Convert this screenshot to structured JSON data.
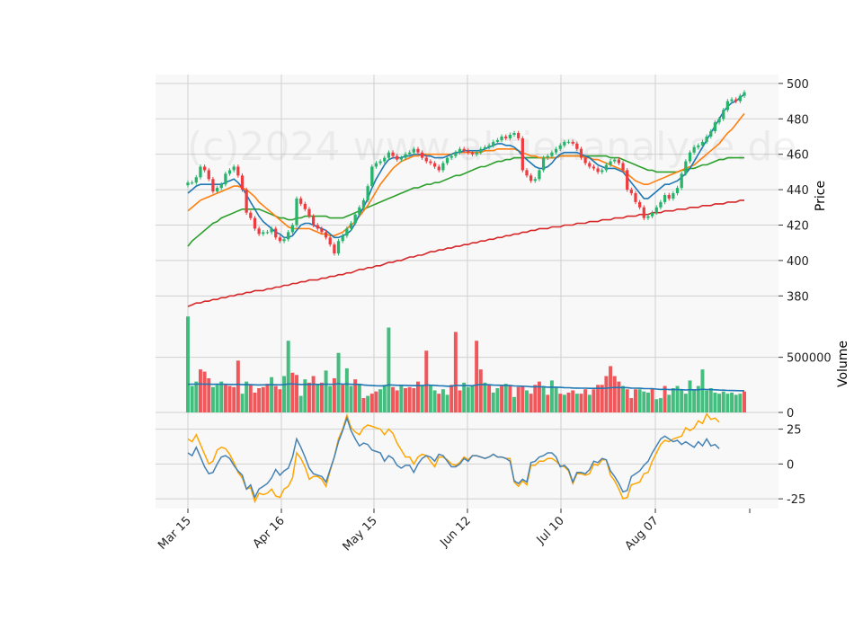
{
  "chart_data": {
    "type": "candlestick",
    "watermark": "(c)2024 www.aktienanalyse.de",
    "colors": {
      "up": "#26b36a",
      "down": "#ef3b3f",
      "ma_blue": "#1f77b4",
      "ma_orange": "#ff7f0e",
      "ma_green": "#2ca02c",
      "ma_red": "#d62728",
      "volume_ma": "#1f77b4",
      "osc_blue": "#4682b4",
      "osc_orange": "#ffa500",
      "grid": "#d0d0d0",
      "panel_bg": "#f8f8f8"
    },
    "x_ticks": [
      "Mar 15",
      "Apr 16",
      "May 15",
      "Jun 12",
      "Jul 10",
      "Aug 07"
    ],
    "price_panel": {
      "ylabel": "Price",
      "ylim": [
        369,
        505
      ],
      "yticks": [
        380,
        400,
        420,
        440,
        460,
        480,
        500
      ],
      "close": [
        444,
        444,
        447,
        453,
        451,
        446,
        439,
        441,
        443,
        449,
        451,
        453,
        448,
        440,
        427,
        424,
        418,
        415,
        416,
        416,
        418,
        413,
        411,
        412,
        416,
        420,
        435,
        432,
        429,
        425,
        420,
        418,
        416,
        413,
        409,
        404,
        411,
        414,
        418,
        421,
        426,
        430,
        434,
        442,
        453,
        455,
        456,
        458,
        461,
        459,
        457,
        458,
        460,
        461,
        463,
        461,
        458,
        456,
        455,
        453,
        451,
        455,
        458,
        459,
        461,
        463,
        462,
        461,
        460,
        461,
        463,
        464,
        465,
        467,
        468,
        470,
        469,
        471,
        472,
        469,
        451,
        448,
        445,
        446,
        451,
        458,
        459,
        461,
        463,
        465,
        467,
        467,
        466,
        463,
        458,
        455,
        453,
        452,
        450,
        451,
        454,
        456,
        457,
        455,
        451,
        440,
        438,
        433,
        430,
        424,
        425,
        427,
        430,
        433,
        437,
        435,
        438,
        441,
        449,
        456,
        461,
        464,
        465,
        467,
        470,
        473,
        478,
        480,
        485,
        490,
        491,
        490,
        493,
        495
      ],
      "ma_blue": [
        438,
        440,
        442,
        443,
        443,
        443,
        443,
        443,
        443,
        444,
        445,
        446,
        444,
        441,
        437,
        433,
        429,
        425,
        422,
        420,
        418,
        416,
        415,
        413,
        413,
        414,
        417,
        420,
        421,
        421,
        420,
        419,
        418,
        417,
        415,
        413,
        413,
        414,
        415,
        417,
        421,
        426,
        430,
        435,
        441,
        446,
        450,
        454,
        457,
        458,
        458,
        458,
        459,
        459,
        460,
        460,
        460,
        459,
        459,
        458,
        458,
        458,
        459,
        460,
        461,
        461,
        462,
        462,
        462,
        462,
        462,
        463,
        464,
        465,
        466,
        466,
        465,
        465,
        464,
        462,
        459,
        457,
        455,
        453,
        452,
        452,
        453,
        455,
        458,
        460,
        461,
        461,
        461,
        461,
        460,
        459,
        458,
        456,
        454,
        453,
        452,
        452,
        452,
        451,
        450,
        447,
        444,
        441,
        438,
        435,
        435,
        437,
        439,
        441,
        443,
        443,
        444,
        445,
        447,
        449,
        452,
        456,
        460,
        464,
        468,
        472,
        476,
        480,
        484,
        487,
        489,
        490,
        492,
        494
      ],
      "ma_orange": [
        428,
        430,
        432,
        434,
        435,
        436,
        437,
        438,
        439,
        440,
        441,
        442,
        442,
        441,
        440,
        438,
        436,
        433,
        431,
        429,
        427,
        425,
        423,
        421,
        419,
        418,
        418,
        418,
        418,
        418,
        417,
        416,
        415,
        415,
        414,
        414,
        415,
        416,
        418,
        420,
        422,
        425,
        428,
        431,
        435,
        439,
        443,
        446,
        449,
        452,
        454,
        456,
        457,
        458,
        459,
        459,
        460,
        460,
        460,
        460,
        460,
        460,
        460,
        460,
        461,
        461,
        461,
        461,
        461,
        461,
        461,
        462,
        462,
        462,
        463,
        463,
        463,
        463,
        463,
        462,
        461,
        460,
        459,
        459,
        458,
        458,
        458,
        458,
        458,
        459,
        459,
        459,
        459,
        459,
        459,
        458,
        458,
        457,
        457,
        456,
        455,
        454,
        453,
        452,
        451,
        449,
        447,
        445,
        444,
        443,
        443,
        444,
        445,
        446,
        447,
        448,
        449,
        450,
        451,
        452,
        453,
        454,
        456,
        458,
        460,
        462,
        464,
        466,
        469,
        472,
        474,
        477,
        480,
        483
      ],
      "ma_green": [
        408,
        411,
        413,
        415,
        417,
        419,
        421,
        422,
        424,
        425,
        426,
        427,
        428,
        429,
        429,
        429,
        429,
        429,
        428,
        427,
        426,
        425,
        424,
        424,
        423,
        423,
        424,
        424,
        425,
        425,
        425,
        425,
        425,
        425,
        424,
        424,
        424,
        424,
        425,
        426,
        427,
        428,
        429,
        430,
        431,
        432,
        433,
        434,
        435,
        436,
        437,
        438,
        439,
        440,
        441,
        441,
        442,
        443,
        443,
        444,
        444,
        445,
        446,
        447,
        448,
        448,
        449,
        450,
        451,
        452,
        453,
        453,
        454,
        455,
        456,
        456,
        457,
        457,
        458,
        458,
        458,
        458,
        458,
        458,
        458,
        458,
        458,
        458,
        458,
        459,
        459,
        459,
        459,
        459,
        459,
        459,
        459,
        459,
        459,
        459,
        459,
        458,
        458,
        458,
        457,
        456,
        455,
        454,
        453,
        452,
        451,
        451,
        450,
        450,
        450,
        450,
        450,
        450,
        451,
        451,
        452,
        452,
        453,
        454,
        454,
        455,
        456,
        457,
        457,
        458,
        458,
        458,
        458,
        458
      ],
      "ma_red": [
        374,
        375,
        376,
        376,
        377,
        377,
        378,
        378,
        379,
        379,
        380,
        380,
        381,
        381,
        382,
        382,
        383,
        383,
        383,
        384,
        384,
        385,
        385,
        386,
        386,
        387,
        387,
        388,
        388,
        389,
        389,
        389,
        390,
        390,
        391,
        391,
        392,
        392,
        393,
        393,
        394,
        395,
        395,
        396,
        396,
        397,
        397,
        398,
        399,
        399,
        400,
        400,
        401,
        402,
        402,
        403,
        403,
        404,
        405,
        405,
        406,
        406,
        407,
        407,
        408,
        408,
        409,
        409,
        410,
        410,
        411,
        411,
        412,
        412,
        413,
        413,
        414,
        414,
        415,
        415,
        416,
        416,
        417,
        417,
        418,
        418,
        418,
        419,
        419,
        419,
        420,
        420,
        420,
        421,
        421,
        421,
        422,
        422,
        422,
        423,
        423,
        423,
        424,
        424,
        424,
        425,
        425,
        425,
        426,
        426,
        426,
        427,
        427,
        427,
        428,
        428,
        428,
        429,
        429,
        429,
        430,
        430,
        430,
        431,
        431,
        431,
        432,
        432,
        432,
        433,
        433,
        433,
        434,
        434
      ]
    },
    "volume_panel": {
      "ylabel": "Volume",
      "ylim": [
        0,
        880000
      ],
      "yticks": [
        0,
        500000
      ],
      "ytick_labels": [
        "0",
        "500000"
      ],
      "volume": [
        870000,
        240000,
        280000,
        390000,
        370000,
        310000,
        230000,
        250000,
        280000,
        250000,
        240000,
        230000,
        470000,
        170000,
        280000,
        250000,
        180000,
        220000,
        230000,
        260000,
        320000,
        240000,
        210000,
        330000,
        650000,
        360000,
        340000,
        150000,
        300000,
        270000,
        330000,
        250000,
        270000,
        380000,
        240000,
        310000,
        540000,
        250000,
        400000,
        240000,
        300000,
        260000,
        130000,
        150000,
        170000,
        190000,
        210000,
        250000,
        770000,
        230000,
        200000,
        250000,
        220000,
        230000,
        220000,
        280000,
        250000,
        560000,
        250000,
        200000,
        170000,
        210000,
        160000,
        250000,
        730000,
        200000,
        270000,
        230000,
        240000,
        650000,
        390000,
        270000,
        250000,
        180000,
        220000,
        240000,
        260000,
        250000,
        140000,
        230000,
        240000,
        200000,
        170000,
        250000,
        280000,
        240000,
        160000,
        290000,
        230000,
        170000,
        160000,
        180000,
        200000,
        170000,
        170000,
        210000,
        160000,
        210000,
        250000,
        250000,
        330000,
        420000,
        330000,
        280000,
        240000,
        210000,
        130000,
        210000,
        210000,
        190000,
        180000,
        220000,
        120000,
        130000,
        240000,
        160000,
        220000,
        240000,
        200000,
        170000,
        290000,
        200000,
        240000,
        390000,
        200000,
        220000,
        180000,
        170000,
        190000,
        170000,
        180000,
        160000,
        170000,
        190000
      ],
      "up": [
        true,
        true,
        true,
        false,
        false,
        false,
        true,
        true,
        true,
        false,
        false,
        false,
        false,
        true,
        true,
        false,
        false,
        false,
        false,
        false,
        true,
        false,
        false,
        true,
        true,
        false,
        false,
        true,
        true,
        false,
        false,
        true,
        false,
        true,
        true,
        false,
        true,
        false,
        true,
        true,
        false,
        true,
        false,
        true,
        false,
        false,
        true,
        true,
        true,
        false,
        false,
        true,
        false,
        false,
        false,
        false,
        true,
        false,
        true,
        true,
        false,
        true,
        true,
        false,
        false,
        false,
        true,
        true,
        true,
        false,
        false,
        true,
        false,
        true,
        true,
        false,
        true,
        false,
        true,
        false,
        false,
        true,
        false,
        false,
        false,
        true,
        false,
        true,
        true,
        false,
        true,
        false,
        false,
        true,
        false,
        false,
        true,
        false,
        false,
        false,
        false,
        false,
        false,
        false,
        true,
        false,
        false,
        false,
        true,
        true,
        true,
        false,
        true,
        true,
        false,
        true,
        true,
        true,
        true,
        true,
        true,
        true,
        true,
        true,
        true,
        true,
        true,
        true,
        true,
        true,
        true,
        true,
        true,
        false
      ],
      "volume_ma": [
        255000,
        256000,
        257000,
        258000,
        257000,
        256000,
        255000,
        256000,
        257000,
        255000,
        254000,
        253000,
        255000,
        252000,
        253000,
        252000,
        250000,
        249000,
        250000,
        250000,
        252000,
        251000,
        250000,
        252000,
        258000,
        258000,
        257000,
        253000,
        255000,
        254000,
        256000,
        254000,
        254000,
        257000,
        255000,
        256000,
        260000,
        256000,
        258000,
        255000,
        255000,
        254000,
        249000,
        246000,
        244000,
        242000,
        241000,
        241000,
        250000,
        248000,
        246000,
        246000,
        245000,
        244000,
        243000,
        244000,
        243000,
        249000,
        247000,
        245000,
        242000,
        241000,
        238000,
        238000,
        246000,
        244000,
        244000,
        243000,
        242000,
        249000,
        252000,
        252000,
        251000,
        248000,
        247000,
        246000,
        245000,
        244000,
        240000,
        239000,
        238000,
        236000,
        233000,
        233000,
        233000,
        232000,
        229000,
        230000,
        229000,
        227000,
        225000,
        224000,
        222000,
        221000,
        220000,
        220000,
        218000,
        218000,
        218000,
        218000,
        220000,
        224000,
        226000,
        226000,
        226000,
        225000,
        221000,
        220000,
        219000,
        217000,
        216000,
        216000,
        212000,
        209000,
        210000,
        207000,
        207000,
        207000,
        206000,
        204000,
        206000,
        205000,
        205000,
        210000,
        208000,
        207000,
        205000,
        203000,
        202000,
        200000,
        199000,
        198000,
        197000,
        196000
      ]
    },
    "osc_panel": {
      "ylim": [
        -32,
        37
      ],
      "yticks": [
        -25,
        0,
        25
      ],
      "blue": [
        8,
        6,
        12,
        5,
        -2,
        -7,
        -6,
        0,
        5,
        6,
        4,
        -1,
        -5,
        -8,
        -18,
        -15,
        -24,
        -18,
        -16,
        -14,
        -10,
        -4,
        -8,
        -5,
        -3,
        5,
        18,
        12,
        5,
        -3,
        -7,
        -8,
        -9,
        -13,
        -4,
        5,
        16,
        24,
        33,
        24,
        18,
        13,
        15,
        14,
        10,
        9,
        8,
        2,
        6,
        4,
        -1,
        -3,
        -1,
        -1,
        -6,
        0,
        4,
        6,
        5,
        2,
        7,
        6,
        2,
        -2,
        -2,
        0,
        4,
        2,
        6,
        6,
        5,
        4,
        5,
        7,
        5,
        5,
        4,
        2,
        -12,
        -14,
        -11,
        -13,
        1,
        2,
        5,
        6,
        8,
        8,
        5,
        -2,
        -1,
        -4,
        -13,
        -6,
        -6,
        -7,
        -4,
        2,
        1,
        4,
        3,
        -5,
        -9,
        -14,
        -20,
        -19,
        -9,
        -7,
        -5,
        -1,
        2,
        8,
        13,
        18,
        20,
        18,
        16,
        17,
        14,
        16,
        14,
        12,
        16,
        13,
        18,
        13,
        14,
        11
      ],
      "orange": [
        18,
        16,
        21,
        14,
        7,
        0,
        2,
        10,
        12,
        11,
        7,
        1,
        -6,
        -10,
        -18,
        -17,
        -27,
        -21,
        -22,
        -21,
        -18,
        -23,
        -24,
        -18,
        -16,
        -10,
        8,
        4,
        -2,
        -11,
        -9,
        -9,
        -11,
        -16,
        -5,
        5,
        18,
        25,
        35,
        26,
        23,
        21,
        26,
        28,
        27,
        26,
        25,
        21,
        25,
        22,
        15,
        10,
        5,
        5,
        0,
        5,
        7,
        6,
        2,
        -2,
        5,
        5,
        3,
        0,
        -1,
        1,
        5,
        3,
        6,
        6,
        5,
        4,
        5,
        7,
        5,
        5,
        4,
        4,
        -13,
        -16,
        -12,
        -15,
        -1,
        -1,
        2,
        2,
        4,
        4,
        2,
        -1,
        -2,
        -5,
        -14,
        -7,
        -7,
        -8,
        -7,
        0,
        -1,
        3,
        3,
        -8,
        -12,
        -18,
        -25,
        -24,
        -15,
        -14,
        -13,
        -7,
        -6,
        2,
        8,
        14,
        17,
        16,
        18,
        19,
        20,
        26,
        24,
        26,
        31,
        29,
        36,
        32,
        33,
        30
      ]
    }
  }
}
